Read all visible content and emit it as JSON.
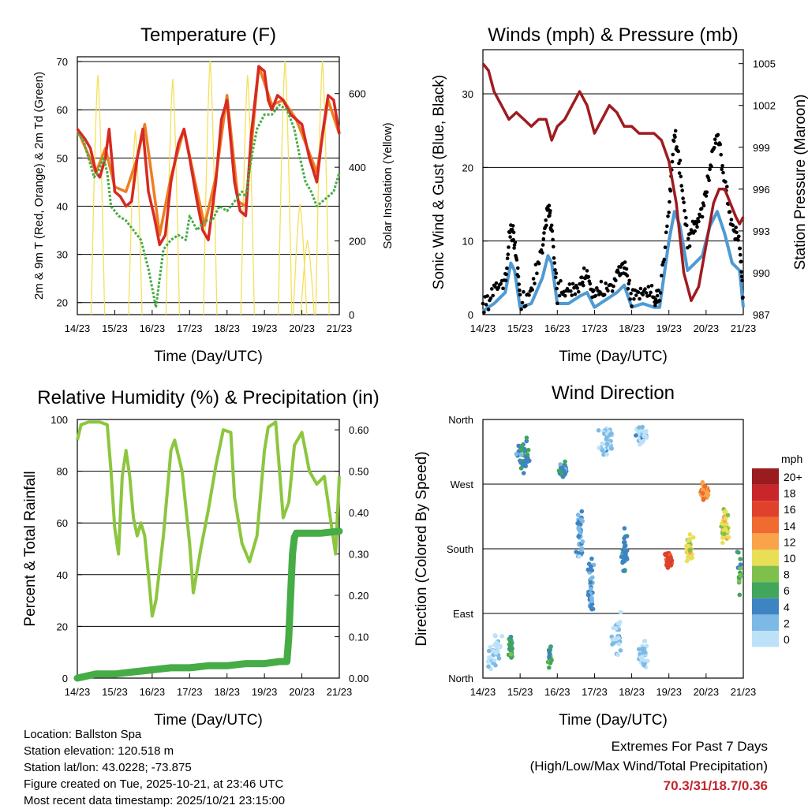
{
  "colors": {
    "red": "#d62a22",
    "orange": "#ef7d22",
    "green": "#46ac46",
    "light_green": "#8cc63f",
    "yellow": "#f4e05a",
    "blue": "#4f9ad3",
    "black": "#000000",
    "maroon": "#9e1b20",
    "extremes": "#c0262c"
  },
  "chart_data": [
    {
      "id": "temperature",
      "type": "line",
      "title": "Temperature (F)",
      "xlabel": "Time (Day/UTC)",
      "ylabel": "2m & 9m T (Red, Orange) & 2m Td (Green)",
      "ylabel_right": "Solar Insolation (Yellow)",
      "x_ticks": [
        "14/23",
        "15/23",
        "16/23",
        "17/23",
        "18/23",
        "19/23",
        "20/23",
        "21/23"
      ],
      "xlim": [
        0,
        7
      ],
      "ylim": [
        17.5,
        71
      ],
      "y_ticks": [
        20,
        30,
        40,
        50,
        60,
        70
      ],
      "y2lim": [
        0,
        700
      ],
      "y2_ticks": [
        0,
        200,
        400,
        600
      ],
      "grid_y": [
        20,
        30,
        40,
        50,
        60,
        70
      ],
      "series": [
        {
          "name": "2m T",
          "color": "red",
          "x": [
            0,
            0.2,
            0.35,
            0.5,
            0.6,
            0.75,
            0.85,
            1.0,
            1.15,
            1.3,
            1.45,
            1.6,
            1.75,
            1.9,
            2.05,
            2.2,
            2.35,
            2.5,
            2.7,
            2.85,
            3.0,
            3.2,
            3.35,
            3.5,
            3.7,
            3.85,
            4.0,
            4.2,
            4.35,
            4.5,
            4.65,
            4.85,
            5.0,
            5.1,
            5.2,
            5.35,
            5.5,
            5.7,
            5.85,
            6.0,
            6.2,
            6.4,
            6.55,
            6.7,
            6.85,
            7.0
          ],
          "y": [
            56,
            54,
            52,
            47,
            46,
            50,
            56,
            43,
            42,
            40,
            41,
            50,
            56,
            43,
            38,
            32,
            34,
            45,
            53,
            56,
            50,
            41,
            35,
            33,
            45,
            58,
            62,
            45,
            39,
            38,
            55,
            69,
            68,
            62,
            60,
            63,
            62,
            59,
            58,
            57,
            50,
            45,
            55,
            63,
            62,
            55
          ]
        },
        {
          "name": "9m T",
          "color": "orange",
          "x": [
            0,
            0.5,
            0.75,
            1.0,
            1.3,
            1.6,
            1.8,
            2.1,
            2.2,
            2.5,
            2.85,
            3.2,
            3.4,
            3.7,
            4.0,
            4.3,
            4.5,
            4.85,
            5.2,
            5.5,
            5.85,
            6.2,
            6.4,
            6.7,
            7.0
          ],
          "y": [
            56,
            47,
            52,
            44,
            43,
            50,
            57,
            40,
            34,
            46,
            56,
            43,
            36,
            46,
            63,
            41,
            40,
            69,
            61,
            62,
            58,
            51,
            47,
            62,
            55
          ]
        },
        {
          "name": "2m Td",
          "color": "green",
          "x": [
            0,
            0.15,
            0.3,
            0.45,
            0.55,
            0.7,
            0.8,
            0.9,
            1.1,
            1.3,
            1.5,
            1.7,
            1.8,
            1.9,
            2.0,
            2.1,
            2.3,
            2.5,
            2.7,
            2.9,
            3.0,
            3.2,
            3.4,
            3.6,
            3.8,
            4.0,
            4.2,
            4.4,
            4.5,
            4.65,
            4.8,
            5.0,
            5.2,
            5.4,
            5.6,
            5.8,
            5.95,
            6.1,
            6.25,
            6.4,
            6.55,
            6.7,
            6.85,
            7.0
          ],
          "y": [
            55,
            54,
            50,
            46,
            47,
            50,
            47,
            40,
            38,
            37,
            35,
            33,
            30,
            27,
            23,
            19,
            31,
            33,
            34,
            33,
            38,
            35,
            37,
            37,
            40,
            39,
            41,
            43,
            42,
            50,
            56,
            59,
            59,
            61,
            60,
            56,
            50,
            45,
            43,
            40,
            41,
            42,
            43,
            47
          ]
        },
        {
          "name": "Solar Insolation",
          "color": "yellow",
          "axis": "right",
          "peaks": [
            {
              "x": 0.55,
              "v": 650
            },
            {
              "x": 1.55,
              "v": 500
            },
            {
              "x": 2.55,
              "v": 640
            },
            {
              "x": 3.55,
              "v": 690
            },
            {
              "x": 4.55,
              "v": 650
            },
            {
              "x": 5.55,
              "v": 690
            },
            {
              "x": 5.95,
              "v": 300
            },
            {
              "x": 6.15,
              "v": 200
            },
            {
              "x": 6.55,
              "v": 690
            }
          ]
        }
      ]
    },
    {
      "id": "winds",
      "type": "scatter",
      "title": "Winds (mph) & Pressure (mb)",
      "xlabel": "Time (Day/UTC)",
      "ylabel": "Sonic Wind & Gust (Blue, Black)",
      "ylabel_right": "Station Pressure (Maroon)",
      "x_ticks": [
        "14/23",
        "15/23",
        "16/23",
        "17/23",
        "18/23",
        "19/23",
        "20/23",
        "21/23"
      ],
      "xlim": [
        0,
        7
      ],
      "ylim": [
        0,
        36
      ],
      "y_ticks": [
        0,
        10,
        20,
        30
      ],
      "y2lim": [
        987,
        1006
      ],
      "y2_ticks": [
        987,
        990,
        993,
        996,
        999,
        1002,
        1005
      ],
      "grid_y": [
        10,
        20,
        30
      ],
      "series": [
        {
          "name": "Gust",
          "color": "black",
          "x": [
            0,
            0.3,
            0.6,
            0.75,
            0.85,
            1.0,
            1.3,
            1.6,
            1.75,
            1.85,
            2.0,
            2.3,
            2.6,
            2.8,
            3.0,
            3.3,
            3.6,
            3.8,
            4.0,
            4.3,
            4.6,
            4.75,
            5.0,
            5.15,
            5.3,
            5.5,
            5.7,
            5.9,
            6.1,
            6.3,
            6.5,
            6.7,
            6.9,
            7.0
          ],
          "y": [
            1,
            3,
            5,
            12,
            10,
            2,
            3,
            9,
            15,
            12,
            3,
            3,
            4,
            6,
            2,
            4,
            5,
            7,
            2,
            3,
            2,
            2,
            15,
            25,
            20,
            10,
            12,
            14,
            20,
            25,
            18,
            12,
            10,
            2
          ]
        },
        {
          "name": "Wind",
          "color": "blue",
          "x": [
            0,
            0.3,
            0.6,
            0.75,
            0.85,
            1.0,
            1.3,
            1.6,
            1.75,
            1.85,
            2.0,
            2.3,
            2.6,
            2.8,
            3.0,
            3.3,
            3.6,
            3.8,
            4.0,
            4.3,
            4.6,
            4.75,
            5.0,
            5.15,
            5.3,
            5.5,
            5.7,
            5.9,
            6.1,
            6.3,
            6.5,
            6.7,
            6.9,
            7.0
          ],
          "y": [
            0.5,
            1.5,
            3,
            7,
            6,
            1,
            1.5,
            5,
            8,
            7,
            1.5,
            1.5,
            2.5,
            3,
            1,
            2,
            3,
            4,
            1,
            1.5,
            1,
            1,
            10,
            14,
            12,
            6,
            7,
            8,
            12,
            14,
            11,
            7,
            6,
            1
          ]
        },
        {
          "name": "Pressure",
          "color": "maroon",
          "axis": "right",
          "x": [
            0,
            0.15,
            0.3,
            0.5,
            0.7,
            0.9,
            1.1,
            1.3,
            1.5,
            1.7,
            1.85,
            2.0,
            2.2,
            2.4,
            2.6,
            2.8,
            3.0,
            3.2,
            3.4,
            3.6,
            3.8,
            4.0,
            4.2,
            4.4,
            4.6,
            4.8,
            5.0,
            5.2,
            5.4,
            5.6,
            5.8,
            6.0,
            6.2,
            6.35,
            6.5,
            6.65,
            6.8,
            6.9,
            7.0
          ],
          "y": [
            1005,
            1004.5,
            1003,
            1002,
            1001,
            1001.5,
            1001,
            1000.5,
            1001,
            1001,
            999.5,
            1000.5,
            1001,
            1002,
            1003,
            1002,
            1000,
            1001,
            1002,
            1001.5,
            1000.5,
            1000.5,
            1000,
            1000,
            1000,
            999.5,
            998,
            995,
            990,
            988,
            989,
            992,
            995,
            996,
            996,
            995,
            994,
            993.5,
            994
          ]
        }
      ]
    },
    {
      "id": "humidity",
      "type": "line",
      "title": "Relative Humidity (%) & Precipitation (in)",
      "xlabel": "Time (Day/UTC)",
      "ylabel": "Percent & Total Rainfall",
      "x_ticks": [
        "14/23",
        "15/23",
        "16/23",
        "17/23",
        "18/23",
        "19/23",
        "20/23",
        "21/23"
      ],
      "xlim": [
        0,
        7
      ],
      "ylim": [
        0,
        100
      ],
      "y_ticks": [
        0,
        20,
        40,
        60,
        80,
        100
      ],
      "y2lim": [
        0,
        0.625
      ],
      "y2_ticks": [
        "0.00",
        "0.10",
        "0.20",
        "0.30",
        "0.40",
        "0.50",
        "0.60"
      ],
      "grid_y": [
        20,
        40,
        60,
        80
      ],
      "series": [
        {
          "name": "Relative Humidity",
          "color": "light_green",
          "x": [
            0,
            0.1,
            0.3,
            0.6,
            0.8,
            0.9,
            1.0,
            1.1,
            1.2,
            1.3,
            1.4,
            1.5,
            1.6,
            1.7,
            1.8,
            1.9,
            2.0,
            2.1,
            2.3,
            2.5,
            2.6,
            2.8,
            3.0,
            3.1,
            3.3,
            3.5,
            3.7,
            3.9,
            4.1,
            4.2,
            4.4,
            4.6,
            4.8,
            5.0,
            5.1,
            5.3,
            5.5,
            5.65,
            5.8,
            6.0,
            6.2,
            6.4,
            6.6,
            6.8,
            6.9,
            7.0
          ],
          "y": [
            92,
            98,
            99,
            99,
            98,
            80,
            58,
            48,
            78,
            88,
            78,
            62,
            55,
            60,
            55,
            40,
            24,
            30,
            55,
            88,
            92,
            80,
            52,
            33,
            50,
            65,
            82,
            96,
            95,
            70,
            52,
            45,
            55,
            88,
            97,
            99,
            62,
            68,
            90,
            95,
            80,
            75,
            78,
            58,
            48,
            78
          ]
        },
        {
          "name": "Total Rainfall",
          "color": "green",
          "axis": "right",
          "x": [
            0,
            0.5,
            1.0,
            1.5,
            2.0,
            2.5,
            3.0,
            3.5,
            4.0,
            4.5,
            5.0,
            5.4,
            5.6,
            5.65,
            5.7,
            5.75,
            5.8,
            5.85,
            6.0,
            6.5,
            7.0
          ],
          "y": [
            0.0,
            0.01,
            0.01,
            0.015,
            0.02,
            0.025,
            0.025,
            0.03,
            0.03,
            0.035,
            0.035,
            0.04,
            0.04,
            0.1,
            0.2,
            0.3,
            0.34,
            0.35,
            0.35,
            0.35,
            0.355
          ]
        }
      ]
    },
    {
      "id": "wind_direction",
      "type": "scatter",
      "title": "Wind Direction",
      "xlabel": "Time (Day/UTC)",
      "ylabel": "Direction (Colored By Speed)",
      "x_ticks": [
        "14/23",
        "15/23",
        "16/23",
        "17/23",
        "18/23",
        "19/23",
        "20/23",
        "21/23"
      ],
      "xlim": [
        0,
        7
      ],
      "ylim": [
        0,
        360
      ],
      "y_ticks": [
        {
          "v": 0,
          "label": "North"
        },
        {
          "v": 90,
          "label": "East"
        },
        {
          "v": 180,
          "label": "South"
        },
        {
          "v": 270,
          "label": "West"
        },
        {
          "v": 360,
          "label": "North"
        }
      ],
      "grid_y": [
        90,
        180,
        270
      ],
      "legend_title": "mph",
      "legend": [
        {
          "label": "20+",
          "color": "#9b1c1f"
        },
        {
          "label": "18",
          "color": "#c8262b"
        },
        {
          "label": "16",
          "color": "#e0412c"
        },
        {
          "label": "14",
          "color": "#ef6b2f"
        },
        {
          "label": "12",
          "color": "#f9a34a"
        },
        {
          "label": "10",
          "color": "#e9df56"
        },
        {
          "label": "8",
          "color": "#7fc04d"
        },
        {
          "label": "6",
          "color": "#41a65a"
        },
        {
          "label": "4",
          "color": "#3e84c2"
        },
        {
          "label": "2",
          "color": "#7db9e6"
        },
        {
          "label": "0",
          "color": "#bde2f7"
        }
      ],
      "clusters": [
        {
          "x": 0.3,
          "y": 30,
          "speed": 1,
          "n": 40,
          "sx": 0.25,
          "sy": 35
        },
        {
          "x": 0.75,
          "y": 40,
          "speed": 6,
          "n": 30,
          "sx": 0.08,
          "sy": 25
        },
        {
          "x": 1.1,
          "y": 310,
          "speed": 4,
          "n": 40,
          "sx": 0.25,
          "sy": 30
        },
        {
          "x": 1.8,
          "y": 30,
          "speed": 6,
          "n": 20,
          "sx": 0.06,
          "sy": 25
        },
        {
          "x": 2.15,
          "y": 290,
          "speed": 4,
          "n": 40,
          "sx": 0.15,
          "sy": 15
        },
        {
          "x": 2.6,
          "y": 200,
          "speed": 3,
          "n": 40,
          "sx": 0.12,
          "sy": 50
        },
        {
          "x": 2.9,
          "y": 120,
          "speed": 3,
          "n": 40,
          "sx": 0.12,
          "sy": 60
        },
        {
          "x": 3.3,
          "y": 330,
          "speed": 1,
          "n": 40,
          "sx": 0.25,
          "sy": 30
        },
        {
          "x": 3.6,
          "y": 60,
          "speed": 1,
          "n": 30,
          "sx": 0.2,
          "sy": 40
        },
        {
          "x": 3.8,
          "y": 180,
          "speed": 4,
          "n": 40,
          "sx": 0.1,
          "sy": 40
        },
        {
          "x": 4.25,
          "y": 340,
          "speed": 1,
          "n": 40,
          "sx": 0.2,
          "sy": 20
        },
        {
          "x": 4.3,
          "y": 30,
          "speed": 1,
          "n": 40,
          "sx": 0.15,
          "sy": 25
        },
        {
          "x": 5.0,
          "y": 165,
          "speed": 16,
          "n": 60,
          "sx": 0.12,
          "sy": 12
        },
        {
          "x": 5.55,
          "y": 180,
          "speed": 10,
          "n": 40,
          "sx": 0.12,
          "sy": 25
        },
        {
          "x": 5.95,
          "y": 260,
          "speed": 13,
          "n": 50,
          "sx": 0.15,
          "sy": 15
        },
        {
          "x": 6.5,
          "y": 210,
          "speed": 10,
          "n": 50,
          "sx": 0.15,
          "sy": 35
        },
        {
          "x": 6.9,
          "y": 150,
          "speed": 6,
          "n": 15,
          "sx": 0.08,
          "sy": 40
        }
      ]
    }
  ],
  "footer": {
    "location": "Location: Ballston Spa",
    "elevation": "Station elevation: 120.518 m",
    "latlon": "Station lat/lon: 43.0228; -73.875",
    "created": "Figure created on Tue, 2025-10-21, at 23:46 UTC",
    "recent": "Most recent data timestamp: 2025/10/21 23:15:00"
  },
  "extremes": {
    "title": "Extremes For Past 7 Days",
    "subtitle": "(High/Low/Max Wind/Total Precipitation)",
    "values": "70.3/31/18.7/0.36"
  }
}
